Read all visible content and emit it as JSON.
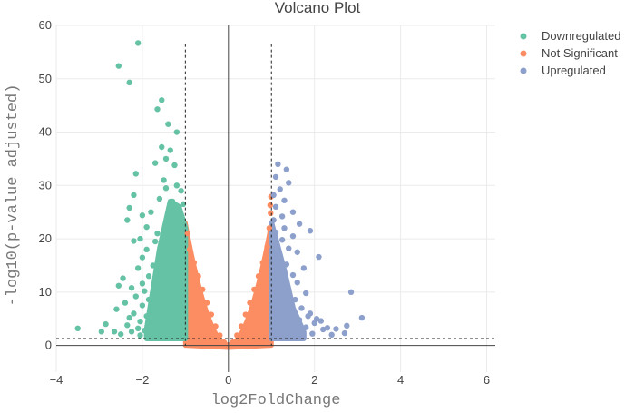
{
  "chart_data": {
    "type": "scatter",
    "title": "Volcano Plot",
    "xlabel": "log2FoldChange",
    "ylabel": "-log10(p-value adjusted)",
    "xlim": [
      -4,
      6.2
    ],
    "ylim": [
      -5,
      60
    ],
    "x_ticks": [
      -4,
      -2,
      0,
      2,
      4,
      6
    ],
    "y_ticks": [
      0,
      10,
      20,
      30,
      40,
      50,
      60
    ],
    "grid": true,
    "legend_position": "top-right",
    "thresholds": {
      "log2fc": [
        -1,
        1
      ],
      "neg_log10_padj": 1.3
    },
    "series": [
      {
        "name": "Downregulated",
        "color": "#66c2a5",
        "points": [
          [
            -2.1,
            56.7
          ],
          [
            -2.55,
            52.4
          ],
          [
            -2.3,
            49.3
          ],
          [
            -1.55,
            46.0
          ],
          [
            -1.65,
            44.3
          ],
          [
            -1.4,
            41.5
          ],
          [
            -1.2,
            40.0
          ],
          [
            -1.55,
            37.2
          ],
          [
            -1.35,
            36.6
          ],
          [
            -1.45,
            35.0
          ],
          [
            -1.7,
            34.2
          ],
          [
            -1.25,
            33.8
          ],
          [
            -2.15,
            32.2
          ],
          [
            -1.5,
            31.0
          ],
          [
            -1.2,
            30.0
          ],
          [
            -1.45,
            29.5
          ],
          [
            -1.1,
            29.0
          ],
          [
            -2.2,
            28.2
          ],
          [
            -1.6,
            27.5
          ],
          [
            -1.3,
            27.0
          ],
          [
            -1.05,
            26.5
          ],
          [
            -2.3,
            25.8
          ],
          [
            -1.8,
            25.0
          ],
          [
            -2.0,
            24.4
          ],
          [
            -1.4,
            24.0
          ],
          [
            -2.35,
            23.5
          ],
          [
            -1.15,
            23.0
          ],
          [
            -1.9,
            22.2
          ],
          [
            -2.05,
            20.0
          ],
          [
            -1.65,
            21.0
          ],
          [
            -1.3,
            20.5
          ],
          [
            -1.7,
            19.5
          ],
          [
            -2.2,
            19.6
          ],
          [
            -1.5,
            18.8
          ],
          [
            -1.1,
            18.5
          ],
          [
            -1.9,
            18.0
          ],
          [
            -1.2,
            17.2
          ],
          [
            -1.6,
            16.8
          ],
          [
            -2.0,
            16.5
          ],
          [
            -1.4,
            15.8
          ],
          [
            -1.75,
            15.0
          ],
          [
            -2.1,
            14.5
          ],
          [
            -1.3,
            14.0
          ],
          [
            -1.55,
            13.5
          ],
          [
            -1.85,
            13.0
          ],
          [
            -2.45,
            12.6
          ],
          [
            -1.2,
            12.5
          ],
          [
            -1.45,
            12.0
          ],
          [
            -2.0,
            11.6
          ],
          [
            -2.55,
            11.2
          ],
          [
            -1.7,
            11.0
          ],
          [
            -2.25,
            10.8
          ],
          [
            -1.3,
            10.5
          ],
          [
            -1.95,
            10.2
          ],
          [
            -1.1,
            10.0
          ],
          [
            -1.6,
            9.5
          ],
          [
            -2.15,
            9.2
          ],
          [
            -1.4,
            9.0
          ],
          [
            -1.85,
            8.6
          ],
          [
            -1.15,
            8.3
          ],
          [
            -2.4,
            8.0
          ],
          [
            -1.5,
            7.8
          ],
          [
            -2.0,
            7.5
          ],
          [
            -1.3,
            7.2
          ],
          [
            -1.75,
            7.0
          ],
          [
            -2.6,
            6.8
          ],
          [
            -1.2,
            6.6
          ],
          [
            -1.6,
            6.3
          ],
          [
            -2.2,
            6.0
          ],
          [
            -1.4,
            5.8
          ],
          [
            -1.9,
            5.5
          ],
          [
            -2.3,
            5.2
          ],
          [
            -1.1,
            5.0
          ],
          [
            -1.55,
            4.8
          ],
          [
            -2.05,
            4.5
          ],
          [
            -1.35,
            4.2
          ],
          [
            -1.8,
            4.0
          ],
          [
            -2.35,
            3.8
          ],
          [
            -1.2,
            3.6
          ],
          [
            -1.65,
            3.4
          ],
          [
            -2.1,
            3.2
          ],
          [
            -1.45,
            3.0
          ],
          [
            -1.95,
            2.8
          ],
          [
            -2.25,
            2.6
          ],
          [
            -1.25,
            2.5
          ],
          [
            -1.7,
            2.3
          ],
          [
            -2.5,
            2.1
          ],
          [
            -1.5,
            2.0
          ],
          [
            -2.05,
            1.9
          ],
          [
            -1.05,
            1.8
          ],
          [
            -3.5,
            3.2
          ],
          [
            -2.95,
            2.6
          ],
          [
            -2.65,
            2.6
          ],
          [
            -2.85,
            4.0
          ]
        ]
      },
      {
        "name": "Not Significant",
        "color": "#fc8d62",
        "points": [
          [
            -0.95,
            21.0
          ],
          [
            -0.9,
            18.0
          ],
          [
            -0.8,
            15.5
          ],
          [
            -0.7,
            13.0
          ],
          [
            -0.6,
            10.5
          ],
          [
            -0.5,
            8.0
          ],
          [
            -0.4,
            5.8
          ],
          [
            -0.3,
            3.6
          ],
          [
            -0.2,
            1.9
          ],
          [
            -0.1,
            0.6
          ],
          [
            0.0,
            0.1
          ],
          [
            0.1,
            0.6
          ],
          [
            0.2,
            1.9
          ],
          [
            0.3,
            3.6
          ],
          [
            0.4,
            5.8
          ],
          [
            0.5,
            8.0
          ],
          [
            0.6,
            10.5
          ],
          [
            0.7,
            13.0
          ],
          [
            0.8,
            15.5
          ],
          [
            0.9,
            18.5
          ],
          [
            0.95,
            22.0
          ],
          [
            0.98,
            24.8
          ],
          [
            0.99,
            27.9
          ],
          [
            0.97,
            26.3
          ]
        ]
      },
      {
        "name": "Upregulated",
        "color": "#8da0cb",
        "points": [
          [
            1.15,
            34.0
          ],
          [
            1.35,
            33.0
          ],
          [
            1.1,
            31.6
          ],
          [
            1.4,
            30.5
          ],
          [
            1.2,
            29.3
          ],
          [
            1.05,
            28.2
          ],
          [
            1.3,
            27.2
          ],
          [
            1.1,
            26.0
          ],
          [
            1.5,
            25.0
          ],
          [
            1.25,
            24.2
          ],
          [
            1.05,
            23.5
          ],
          [
            1.65,
            22.8
          ],
          [
            1.3,
            22.0
          ],
          [
            1.1,
            21.2
          ],
          [
            1.5,
            20.5
          ],
          [
            1.9,
            21.5
          ],
          [
            1.25,
            19.8
          ],
          [
            1.1,
            19.0
          ],
          [
            1.4,
            18.2
          ],
          [
            1.6,
            17.5
          ],
          [
            2.1,
            16.6
          ],
          [
            1.2,
            16.8
          ],
          [
            1.05,
            15.8
          ],
          [
            1.35,
            15.2
          ],
          [
            1.75,
            14.5
          ],
          [
            1.15,
            14.0
          ],
          [
            1.5,
            13.2
          ],
          [
            1.25,
            12.5
          ],
          [
            1.6,
            11.8
          ],
          [
            1.1,
            11.0
          ],
          [
            1.4,
            10.5
          ],
          [
            1.8,
            9.8
          ],
          [
            1.2,
            9.2
          ],
          [
            1.55,
            8.6
          ],
          [
            1.1,
            8.0
          ],
          [
            1.35,
            7.5
          ],
          [
            1.7,
            7.0
          ],
          [
            1.2,
            6.5
          ],
          [
            1.9,
            6.0
          ],
          [
            1.45,
            5.6
          ],
          [
            1.1,
            5.2
          ],
          [
            1.65,
            4.8
          ],
          [
            1.3,
            4.4
          ],
          [
            2.0,
            4.2
          ],
          [
            1.15,
            4.0
          ],
          [
            1.5,
            3.7
          ],
          [
            1.8,
            3.4
          ],
          [
            1.25,
            3.2
          ],
          [
            2.2,
            3.0
          ],
          [
            1.05,
            2.9
          ],
          [
            1.6,
            2.6
          ],
          [
            1.35,
            2.4
          ],
          [
            1.95,
            2.2
          ],
          [
            1.15,
            2.1
          ],
          [
            2.4,
            2.0
          ],
          [
            2.05,
            5.0
          ],
          [
            2.15,
            4.6
          ],
          [
            2.3,
            3.3
          ],
          [
            2.5,
            3.1
          ],
          [
            2.7,
            2.3
          ],
          [
            2.75,
            3.7
          ],
          [
            2.85,
            10.0
          ],
          [
            3.1,
            5.2
          ],
          [
            1.85,
            5.5
          ]
        ]
      }
    ]
  }
}
